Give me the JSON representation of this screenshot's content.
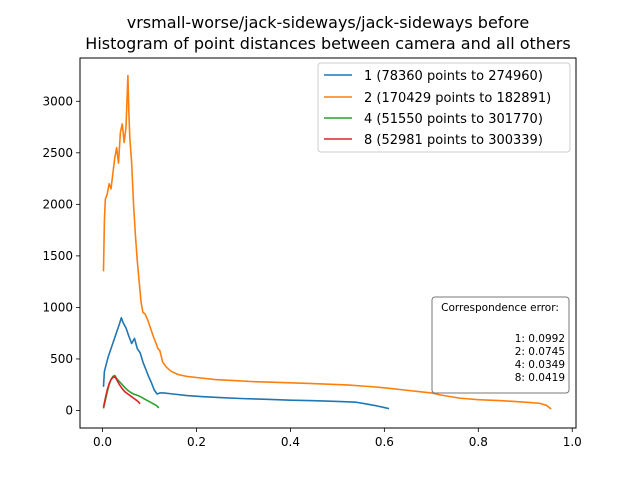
{
  "chart_data": {
    "type": "line",
    "title_lines": [
      "vrsmall-worse/jack-sideways/jack-sideways before",
      "Histogram of point distances between camera and all others"
    ],
    "xlabel": "",
    "ylabel": "",
    "xlim": [
      -0.048,
      1.008
    ],
    "ylim": [
      -170,
      3420
    ],
    "xticks": [
      {
        "value": 0.0,
        "label": "0.0"
      },
      {
        "value": 0.2,
        "label": "0.2"
      },
      {
        "value": 0.4,
        "label": "0.4"
      },
      {
        "value": 0.6,
        "label": "0.6"
      },
      {
        "value": 0.8,
        "label": "0.8"
      },
      {
        "value": 1.0,
        "label": "1.0"
      }
    ],
    "yticks": [
      {
        "value": 0,
        "label": "0"
      },
      {
        "value": 500,
        "label": "500"
      },
      {
        "value": 1000,
        "label": "1000"
      },
      {
        "value": 1500,
        "label": "1500"
      },
      {
        "value": 2000,
        "label": "2000"
      },
      {
        "value": 2500,
        "label": "2500"
      },
      {
        "value": 3000,
        "label": "3000"
      }
    ],
    "grid": false,
    "legend_position": "upper right",
    "series": [
      {
        "name": "1 (78360 points to 274960)",
        "color": "#1f77b4",
        "points": [
          [
            0.002,
            230
          ],
          [
            0.004,
            380
          ],
          [
            0.008,
            450
          ],
          [
            0.012,
            520
          ],
          [
            0.018,
            600
          ],
          [
            0.024,
            680
          ],
          [
            0.03,
            760
          ],
          [
            0.036,
            840
          ],
          [
            0.04,
            900
          ],
          [
            0.044,
            850
          ],
          [
            0.05,
            800
          ],
          [
            0.056,
            720
          ],
          [
            0.062,
            650
          ],
          [
            0.068,
            700
          ],
          [
            0.074,
            600
          ],
          [
            0.08,
            560
          ],
          [
            0.086,
            470
          ],
          [
            0.092,
            400
          ],
          [
            0.098,
            330
          ],
          [
            0.104,
            270
          ],
          [
            0.11,
            200
          ],
          [
            0.116,
            160
          ],
          [
            0.122,
            170
          ],
          [
            0.13,
            170
          ],
          [
            0.15,
            160
          ],
          [
            0.18,
            145
          ],
          [
            0.21,
            135
          ],
          [
            0.25,
            125
          ],
          [
            0.3,
            115
          ],
          [
            0.35,
            108
          ],
          [
            0.4,
            100
          ],
          [
            0.45,
            95
          ],
          [
            0.5,
            88
          ],
          [
            0.54,
            80
          ],
          [
            0.56,
            65
          ],
          [
            0.58,
            48
          ],
          [
            0.6,
            28
          ],
          [
            0.61,
            18
          ]
        ]
      },
      {
        "name": "2 (170429 points to 182891)",
        "color": "#ff7f0e",
        "points": [
          [
            0.002,
            1350
          ],
          [
            0.004,
            1850
          ],
          [
            0.006,
            2050
          ],
          [
            0.01,
            2100
          ],
          [
            0.014,
            2200
          ],
          [
            0.018,
            2150
          ],
          [
            0.022,
            2300
          ],
          [
            0.026,
            2450
          ],
          [
            0.03,
            2550
          ],
          [
            0.034,
            2400
          ],
          [
            0.038,
            2700
          ],
          [
            0.042,
            2780
          ],
          [
            0.046,
            2600
          ],
          [
            0.05,
            2750
          ],
          [
            0.054,
            3250
          ],
          [
            0.056,
            2900
          ],
          [
            0.058,
            2650
          ],
          [
            0.062,
            2400
          ],
          [
            0.066,
            2000
          ],
          [
            0.07,
            1700
          ],
          [
            0.074,
            1450
          ],
          [
            0.078,
            1250
          ],
          [
            0.082,
            1050
          ],
          [
            0.086,
            950
          ],
          [
            0.09,
            940
          ],
          [
            0.096,
            880
          ],
          [
            0.102,
            800
          ],
          [
            0.108,
            720
          ],
          [
            0.114,
            650
          ],
          [
            0.118,
            600
          ],
          [
            0.122,
            580
          ],
          [
            0.128,
            470
          ],
          [
            0.136,
            420
          ],
          [
            0.146,
            380
          ],
          [
            0.16,
            350
          ],
          [
            0.18,
            330
          ],
          [
            0.2,
            320
          ],
          [
            0.24,
            300
          ],
          [
            0.28,
            290
          ],
          [
            0.32,
            280
          ],
          [
            0.36,
            275
          ],
          [
            0.4,
            268
          ],
          [
            0.44,
            262
          ],
          [
            0.48,
            255
          ],
          [
            0.52,
            248
          ],
          [
            0.56,
            235
          ],
          [
            0.6,
            220
          ],
          [
            0.64,
            200
          ],
          [
            0.68,
            180
          ],
          [
            0.7,
            170
          ],
          [
            0.72,
            150
          ],
          [
            0.76,
            120
          ],
          [
            0.8,
            105
          ],
          [
            0.85,
            95
          ],
          [
            0.9,
            80
          ],
          [
            0.93,
            70
          ],
          [
            0.945,
            50
          ],
          [
            0.955,
            15
          ]
        ]
      },
      {
        "name": "4 (51550 points to 301770)",
        "color": "#2ca02c",
        "points": [
          [
            0.002,
            20
          ],
          [
            0.006,
            100
          ],
          [
            0.01,
            180
          ],
          [
            0.014,
            250
          ],
          [
            0.018,
            300
          ],
          [
            0.022,
            330
          ],
          [
            0.026,
            340
          ],
          [
            0.03,
            310
          ],
          [
            0.036,
            280
          ],
          [
            0.042,
            250
          ],
          [
            0.048,
            220
          ],
          [
            0.054,
            195
          ],
          [
            0.06,
            175
          ],
          [
            0.066,
            160
          ],
          [
            0.072,
            150
          ],
          [
            0.078,
            140
          ],
          [
            0.084,
            125
          ],
          [
            0.09,
            110
          ],
          [
            0.096,
            95
          ],
          [
            0.102,
            80
          ],
          [
            0.108,
            65
          ],
          [
            0.114,
            50
          ],
          [
            0.12,
            25
          ]
        ]
      },
      {
        "name": "8 (52981 points to 300339)",
        "color": "#d62728",
        "points": [
          [
            0.002,
            30
          ],
          [
            0.006,
            120
          ],
          [
            0.01,
            200
          ],
          [
            0.014,
            260
          ],
          [
            0.018,
            300
          ],
          [
            0.022,
            320
          ],
          [
            0.026,
            330
          ],
          [
            0.03,
            300
          ],
          [
            0.036,
            250
          ],
          [
            0.042,
            210
          ],
          [
            0.048,
            180
          ],
          [
            0.054,
            160
          ],
          [
            0.06,
            140
          ],
          [
            0.066,
            120
          ],
          [
            0.072,
            100
          ],
          [
            0.076,
            85
          ],
          [
            0.08,
            65
          ]
        ]
      }
    ],
    "annotation": {
      "title": "Correspondence error:",
      "lines": [
        "1: 0.0992",
        "2: 0.0745",
        "4: 0.0349",
        "8: 0.0419"
      ]
    }
  }
}
